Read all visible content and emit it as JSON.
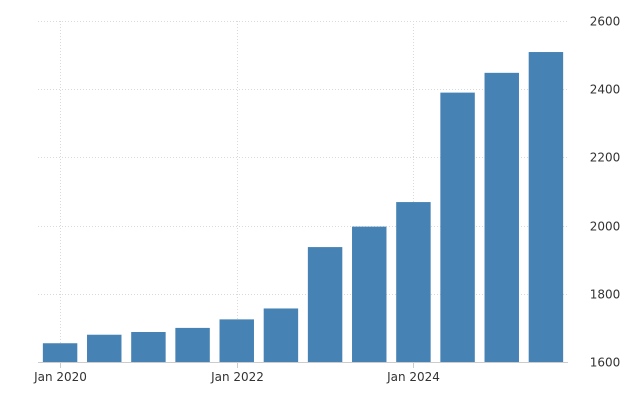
{
  "chart_data": {
    "type": "bar",
    "categories": [
      "2020-01",
      "2020-07",
      "2021-01",
      "2021-07",
      "2022-01",
      "2022-07",
      "2023-01",
      "2023-07",
      "2024-01",
      "2024-07",
      "2025-01",
      "2025-07"
    ],
    "series": [
      {
        "values": [
          1655,
          1680,
          1688,
          1700,
          1725,
          1757,
          1937,
          1997,
          2069,
          2390,
          2448,
          2509
        ]
      }
    ],
    "x_tick_labels": [
      {
        "category": "2020-01",
        "label": "Jan 2020"
      },
      {
        "category": "2022-01",
        "label": "Jan 2022"
      },
      {
        "category": "2024-01",
        "label": "Jan 2024"
      }
    ],
    "y_ticks": [
      1600,
      1800,
      2000,
      2200,
      2400,
      2600
    ],
    "ylim": [
      1600,
      2600
    ],
    "title": "",
    "xlabel": "",
    "ylabel": "",
    "grid": true,
    "y_axis_side": "right",
    "bar_color": "#4682b4"
  }
}
